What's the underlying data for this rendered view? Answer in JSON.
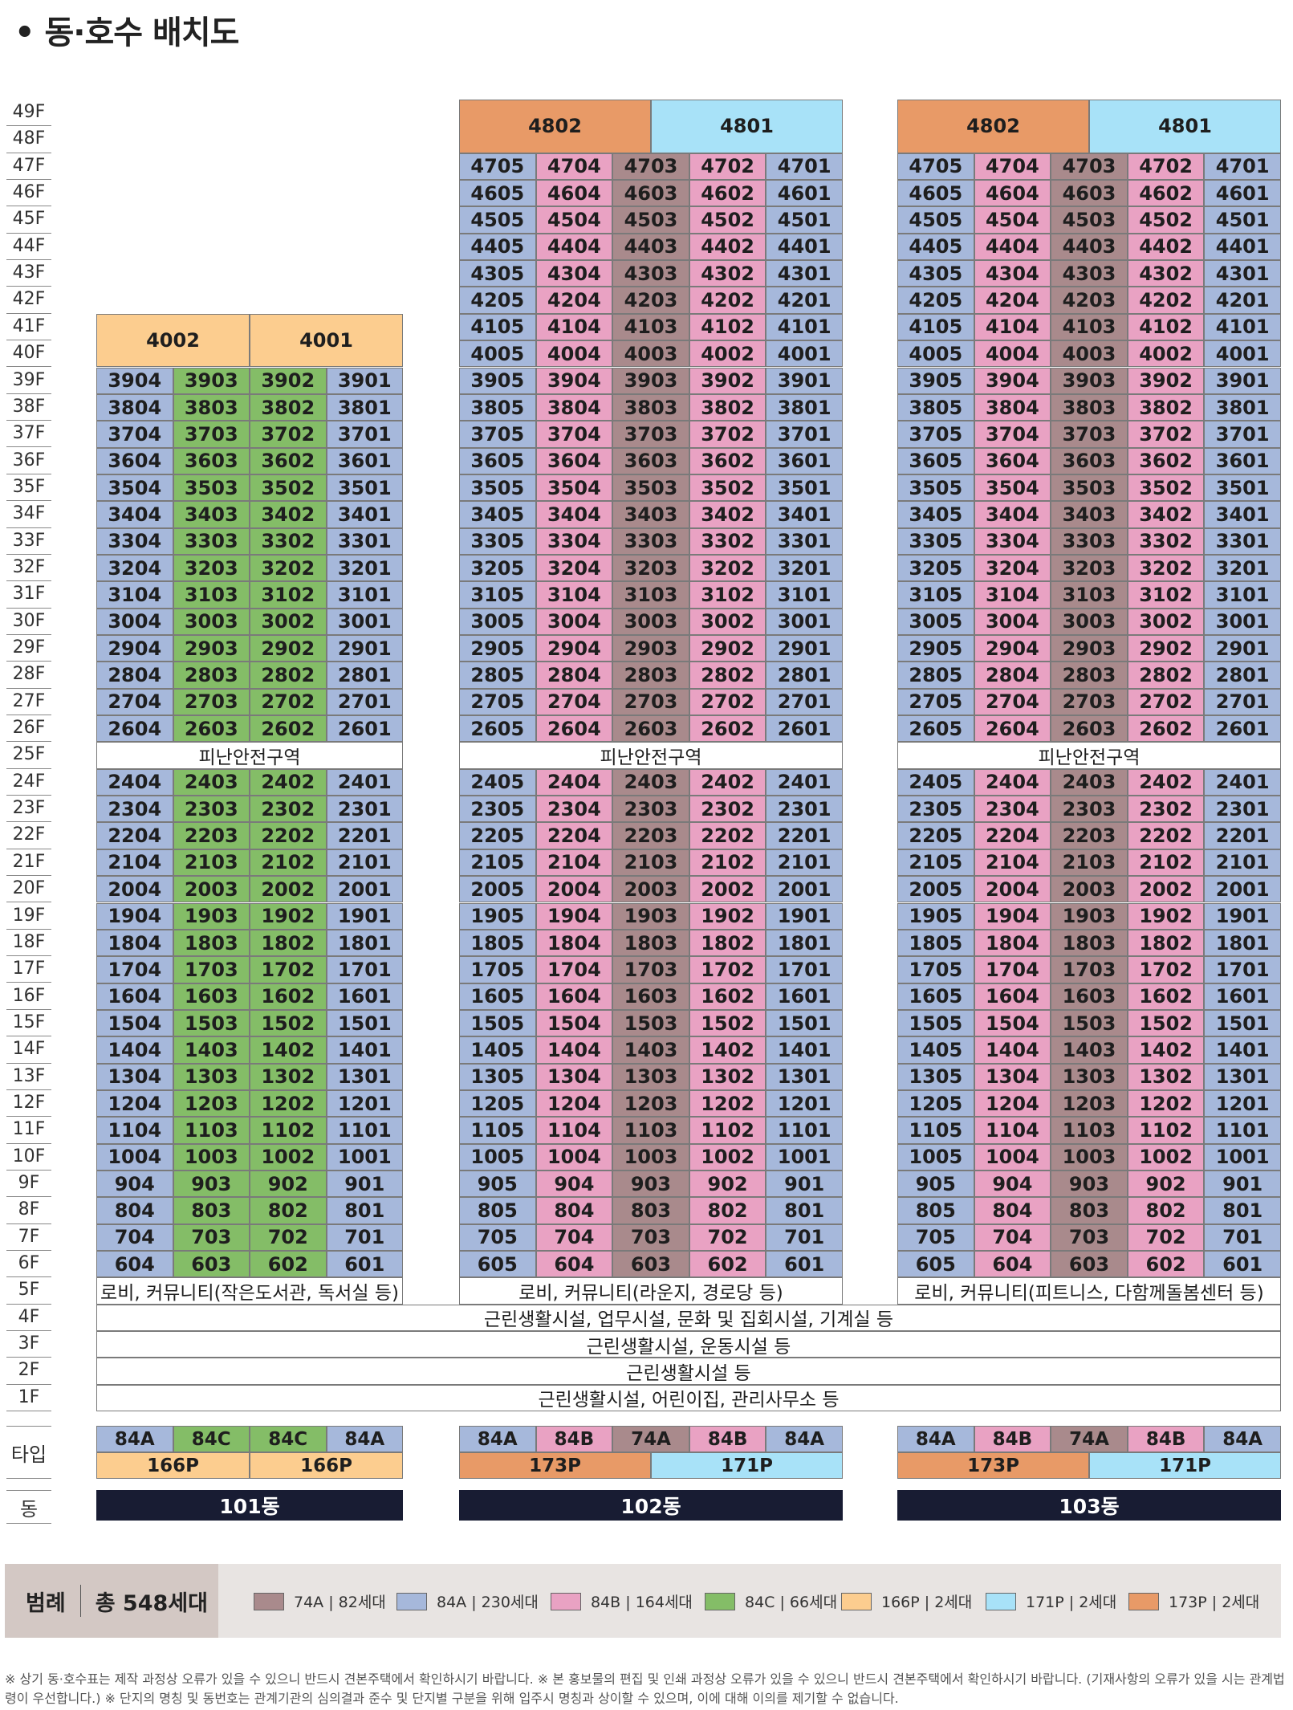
{
  "title": "• 동·호수 배치도",
  "floor_labels": [
    "49F",
    "48F",
    "47F",
    "46F",
    "45F",
    "44F",
    "43F",
    "42F",
    "41F",
    "40F",
    "39F",
    "38F",
    "37F",
    "36F",
    "35F",
    "34F",
    "33F",
    "32F",
    "31F",
    "30F",
    "29F",
    "28F",
    "27F",
    "26F",
    "25F",
    "24F",
    "23F",
    "22F",
    "21F",
    "20F",
    "19F",
    "18F",
    "17F",
    "16F",
    "15F",
    "14F",
    "13F",
    "12F",
    "11F",
    "10F",
    "9F",
    "8F",
    "7F",
    "6F",
    "5F",
    "4F",
    "3F",
    "2F",
    "1F"
  ],
  "row_labels": {
    "type": "타입",
    "dong": "동"
  },
  "refuge_label": "피난안전구역",
  "buildings": [
    {
      "id": "101",
      "dong": "101동",
      "columns": [
        "84A",
        "84C",
        "84C",
        "84A"
      ],
      "top_units": [
        {
          "label": "4002",
          "type": "166P",
          "span": 2
        },
        {
          "label": "4001",
          "type": "166P",
          "span": 2
        }
      ],
      "top_floors": 2,
      "max_floor": 39,
      "lobby": "로비, 커뮤니티(작은도서관, 독서실 등)",
      "type_row": [
        "84A",
        "84C",
        "84C",
        "84A"
      ],
      "ptype_row": [
        {
          "label": "166P",
          "type": "166P",
          "span": 2
        },
        {
          "label": "166P",
          "type": "166P",
          "span": 2
        }
      ]
    },
    {
      "id": "102",
      "dong": "102동",
      "columns": [
        "84A",
        "84B",
        "74A",
        "84B",
        "84A"
      ],
      "top_units": [
        {
          "label": "4802",
          "type": "173P",
          "span": 2.5
        },
        {
          "label": "4801",
          "type": "171P",
          "span": 2.5
        }
      ],
      "top_floors": 2,
      "max_floor": 47,
      "lobby": "로비, 커뮤니티(라운지, 경로당 등)",
      "type_row": [
        "84A",
        "84B",
        "74A",
        "84B",
        "84A"
      ],
      "ptype_row": [
        {
          "label": "173P",
          "type": "173P",
          "span": 2.5
        },
        {
          "label": "171P",
          "type": "171P",
          "span": 2.5
        }
      ]
    },
    {
      "id": "103",
      "dong": "103동",
      "columns": [
        "84A",
        "84B",
        "74A",
        "84B",
        "84A"
      ],
      "top_units": [
        {
          "label": "4802",
          "type": "173P",
          "span": 2.5
        },
        {
          "label": "4801",
          "type": "171P",
          "span": 2.5
        }
      ],
      "top_floors": 2,
      "max_floor": 47,
      "lobby": "로비, 커뮤니티(피트니스, 다함께돌봄센터 등)",
      "type_row": [
        "84A",
        "84B",
        "74A",
        "84B",
        "84A"
      ],
      "ptype_row": [
        {
          "label": "173P",
          "type": "173P",
          "span": 2.5
        },
        {
          "label": "171P",
          "type": "171P",
          "span": 2.5
        }
      ]
    }
  ],
  "podium_floors": [
    {
      "floor": "4F",
      "label": "근린생활시설, 업무시설, 문화 및 집회시설, 기계실 등"
    },
    {
      "floor": "3F",
      "label": "근린생활시설, 운동시설 등"
    },
    {
      "floor": "2F",
      "label": "근린생활시설 등"
    },
    {
      "floor": "1F",
      "label": "근린생활시설, 어린이집, 관리사무소 등"
    }
  ],
  "legend": {
    "title": "범례",
    "total": "총 548세대",
    "items": [
      {
        "type": "74A",
        "label": "74A | 82세대",
        "color": "#a98a8c"
      },
      {
        "type": "84A",
        "label": "84A | 230세대",
        "color": "#a6b8db"
      },
      {
        "type": "84B",
        "label": "84B | 164세대",
        "color": "#e9a2c3"
      },
      {
        "type": "84C",
        "label": "84C | 66세대",
        "color": "#84bd67"
      },
      {
        "type": "166P",
        "label": "166P | 2세대",
        "color": "#fccd8f"
      },
      {
        "type": "171P",
        "label": "171P | 2세대",
        "color": "#a8e2f8"
      },
      {
        "type": "173P",
        "label": "173P | 2세대",
        "color": "#e89a67"
      }
    ]
  },
  "footnote": "※ 상기 동·호수표는 제작 과정상 오류가 있을 수 있으니 반드시 견본주택에서 확인하시기 바랍니다. ※ 본 홍보물의 편집 및 인쇄 과정상 오류가 있을 수 있으니 반드시 견본주택에서 확인하시기 바랍니다. (기재사항의 오류가 있을 시는 관계법령이 우선합니다.) ※ 단지의 명칭 및 동번호는 관계기관의 심의결과 준수 및 단지별 구분을 위해 입주시 명칭과 상이할 수 있으며, 이에 대해 이의를 제기할 수 없습니다."
}
